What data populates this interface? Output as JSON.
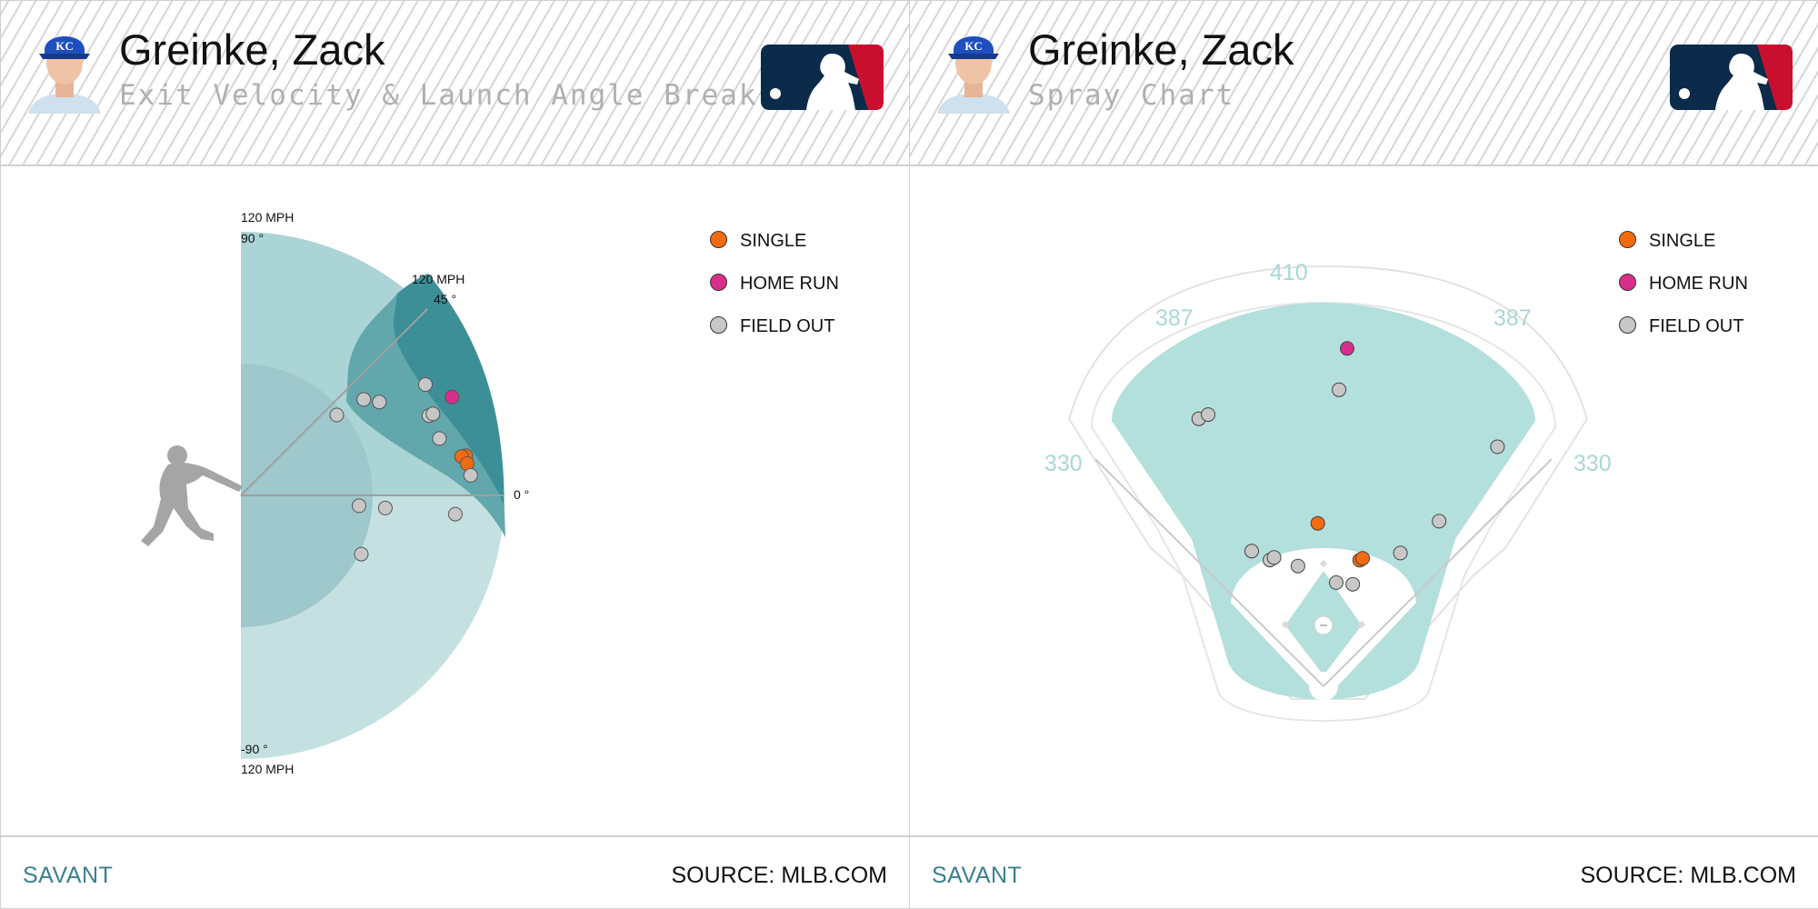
{
  "colors": {
    "single": "#f26b10",
    "home_run": "#d92e8b",
    "field_out": "#c7c7c7",
    "brand": "#3a7f8c",
    "field": "#b3dfdc"
  },
  "footer": {
    "brand": "SAVANT",
    "source": "SOURCE: MLB.COM"
  },
  "panels": {
    "ev_la": {
      "player_name": "Greinke, Zack",
      "subtitle": "Exit Velocity & Launch Angle Breakdown"
    },
    "spray": {
      "player_name": "Greinke, Zack",
      "subtitle": "Spray Chart"
    }
  },
  "legend": [
    {
      "key": "single",
      "label": "SINGLE",
      "color": "#f26b10"
    },
    {
      "key": "home_run",
      "label": "HOME RUN",
      "color": "#d92e8b"
    },
    {
      "key": "field_out",
      "label": "FIELD OUT",
      "color": "#c7c7c7"
    }
  ],
  "chart_data": [
    {
      "type": "scatter",
      "coordinate_system": "polar",
      "title": "Exit Velocity & Launch Angle Breakdown",
      "radius_label": "120 MPH",
      "radius_max_mph": 120,
      "angle_range_deg": [
        -90,
        90
      ],
      "angle_labels": [
        {
          "deg": 90,
          "text": "90 °",
          "speed": "120 MPH"
        },
        {
          "deg": 45,
          "text": "45 °",
          "speed": "120 MPH"
        },
        {
          "deg": 0,
          "text": "0 °",
          "speed": ""
        },
        {
          "deg": -90,
          "text": "-90 °",
          "speed": "120 MPH"
        }
      ],
      "points": [
        {
          "result": "single",
          "ev_mph": 104,
          "la_deg": 10.0
        },
        {
          "result": "single",
          "ev_mph": 102,
          "la_deg": 10.0
        },
        {
          "result": "single",
          "ev_mph": 104,
          "la_deg": 8.0
        },
        {
          "result": "home_run",
          "ev_mph": 106,
          "la_deg": 25.0
        },
        {
          "result": "field_out",
          "ev_mph": 71,
          "la_deg": 38.0
        },
        {
          "result": "field_out",
          "ev_mph": 76,
          "la_deg": 34.0
        },
        {
          "result": "field_out",
          "ev_mph": 98,
          "la_deg": 31.0
        },
        {
          "result": "field_out",
          "ev_mph": 93,
          "la_deg": 23.0
        },
        {
          "result": "field_out",
          "ev_mph": 95,
          "la_deg": 23.0
        },
        {
          "result": "field_out",
          "ev_mph": 94,
          "la_deg": 16.0
        },
        {
          "result": "field_out",
          "ev_mph": 57,
          "la_deg": 40.0
        },
        {
          "result": "field_out",
          "ev_mph": 105,
          "la_deg": 5.0
        },
        {
          "result": "field_out",
          "ev_mph": 54,
          "la_deg": -5.0
        },
        {
          "result": "field_out",
          "ev_mph": 66,
          "la_deg": -5.0
        },
        {
          "result": "field_out",
          "ev_mph": 98,
          "la_deg": -5.0
        },
        {
          "result": "field_out",
          "ev_mph": 61,
          "la_deg": -26.0
        }
      ]
    },
    {
      "type": "scatter",
      "title": "Spray Chart",
      "units": "feet",
      "fence_distances": [
        {
          "label": "330",
          "field": "left-line"
        },
        {
          "label": "387",
          "field": "left-center"
        },
        {
          "label": "410",
          "field": "center"
        },
        {
          "label": "387",
          "field": "right-center"
        },
        {
          "label": "330",
          "field": "right-line"
        }
      ],
      "hits": [
        {
          "result": "home_run",
          "spray_angle_deg": 4,
          "distance_ft": 405
        },
        {
          "result": "field_out",
          "spray_angle_deg": 3,
          "distance_ft": 355
        },
        {
          "result": "field_out",
          "spray_angle_deg": -25,
          "distance_ft": 353
        },
        {
          "result": "field_out",
          "spray_angle_deg": -23,
          "distance_ft": 353
        },
        {
          "result": "field_out",
          "spray_angle_deg": 36,
          "distance_ft": 354
        },
        {
          "result": "single",
          "spray_angle_deg": -2,
          "distance_ft": 195
        },
        {
          "result": "field_out",
          "spray_angle_deg": 35,
          "distance_ft": 241
        },
        {
          "result": "single",
          "spray_angle_deg": 16,
          "distance_ft": 157
        },
        {
          "result": "single",
          "spray_angle_deg": 17,
          "distance_ft": 160
        },
        {
          "result": "field_out",
          "spray_angle_deg": 30,
          "distance_ft": 184
        },
        {
          "result": "field_out",
          "spray_angle_deg": -28,
          "distance_ft": 183
        },
        {
          "result": "field_out",
          "spray_angle_deg": -23,
          "distance_ft": 164
        },
        {
          "result": "field_out",
          "spray_angle_deg": -21,
          "distance_ft": 165
        },
        {
          "result": "field_out",
          "spray_angle_deg": -12,
          "distance_ft": 147
        },
        {
          "result": "field_out",
          "spray_angle_deg": 7,
          "distance_ft": 125
        },
        {
          "result": "field_out",
          "spray_angle_deg": 16,
          "distance_ft": 127
        }
      ]
    }
  ]
}
